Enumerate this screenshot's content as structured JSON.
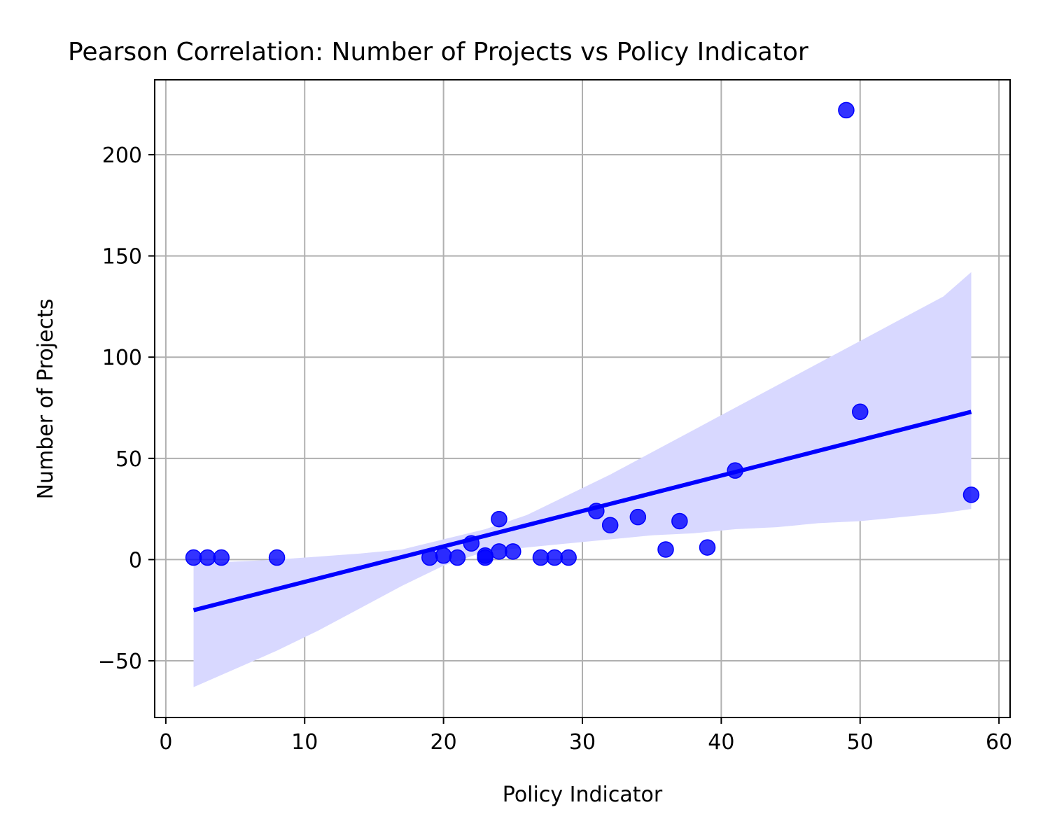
{
  "chart_data": {
    "type": "scatter",
    "title": "Pearson Correlation: Number of Projects vs Policy Indicator",
    "xlabel": "Policy Indicator",
    "ylabel": "Number of Projects",
    "xlim": [
      -0.8,
      60.8
    ],
    "ylim": [
      -78,
      237
    ],
    "xticks": [
      0,
      10,
      20,
      30,
      40,
      50,
      60
    ],
    "yticks": [
      -50,
      0,
      50,
      100,
      150,
      200
    ],
    "yticklabels": [
      "−50",
      "0",
      "50",
      "100",
      "150",
      "200"
    ],
    "grid": true,
    "points": [
      {
        "x": 2,
        "y": 1
      },
      {
        "x": 3,
        "y": 1
      },
      {
        "x": 4,
        "y": 1
      },
      {
        "x": 8,
        "y": 1
      },
      {
        "x": 19,
        "y": 1
      },
      {
        "x": 20,
        "y": 2
      },
      {
        "x": 21,
        "y": 1
      },
      {
        "x": 22,
        "y": 8
      },
      {
        "x": 23,
        "y": 1
      },
      {
        "x": 23,
        "y": 2
      },
      {
        "x": 24,
        "y": 20
      },
      {
        "x": 24,
        "y": 4
      },
      {
        "x": 25,
        "y": 4
      },
      {
        "x": 27,
        "y": 1
      },
      {
        "x": 28,
        "y": 1
      },
      {
        "x": 29,
        "y": 1
      },
      {
        "x": 31,
        "y": 24
      },
      {
        "x": 32,
        "y": 17
      },
      {
        "x": 34,
        "y": 21
      },
      {
        "x": 36,
        "y": 5
      },
      {
        "x": 37,
        "y": 19
      },
      {
        "x": 39,
        "y": 6
      },
      {
        "x": 41,
        "y": 44
      },
      {
        "x": 49,
        "y": 222
      },
      {
        "x": 50,
        "y": 73
      },
      {
        "x": 58,
        "y": 32
      }
    ],
    "regression_line": {
      "x": [
        2,
        58
      ],
      "y": [
        -25,
        73
      ]
    },
    "confidence_band": {
      "x": [
        2,
        5,
        8,
        11,
        14,
        17,
        20,
        23,
        26,
        29,
        32,
        35,
        38,
        41,
        44,
        47,
        50,
        53,
        56,
        58
      ],
      "upper": [
        -2,
        -1,
        0,
        1.5,
        3,
        5,
        10,
        15,
        22,
        32,
        42,
        53,
        64,
        75,
        86,
        97,
        108,
        119,
        130,
        142
      ],
      "lower": [
        -63,
        -54,
        -45,
        -35,
        -24,
        -13,
        -3,
        4,
        6,
        8,
        10,
        12,
        13,
        15,
        16,
        18,
        19,
        21,
        23,
        25
      ]
    },
    "colors": {
      "points": "#0000ff",
      "line": "#0000ff",
      "band": "#d8d8ff",
      "grid": "#b0b0b0"
    }
  }
}
